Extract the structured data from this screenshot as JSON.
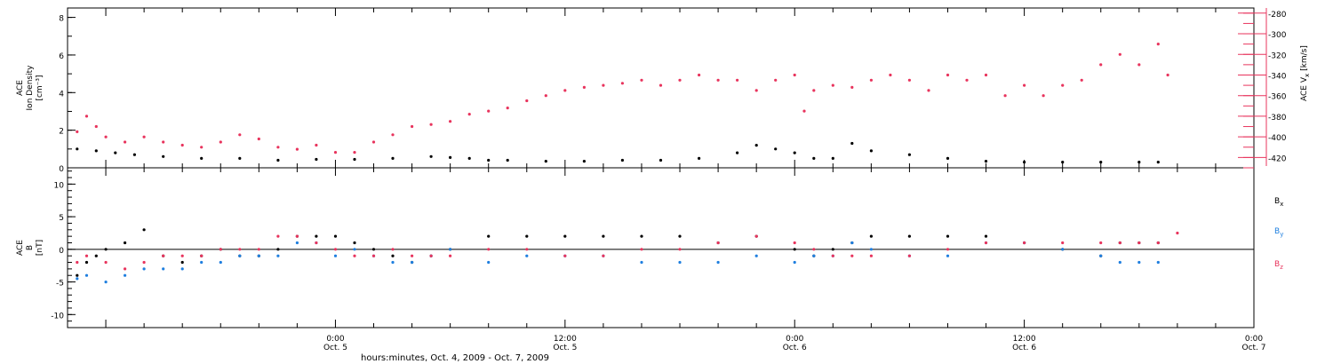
{
  "chart_data": [
    {
      "type": "scatter",
      "panel": "top",
      "ylabel_lines": [
        "ACE",
        "Ion Density",
        "[cm⁻³]"
      ],
      "ylim": [
        0,
        8.5
      ],
      "yticks": [
        0,
        2,
        4,
        6,
        8
      ],
      "y2label": "ACE V",
      "y2label_sub": "x",
      "y2label_unit": "[km/s]",
      "y2lim": [
        -430,
        -275
      ],
      "y2ticks": [
        -420,
        -400,
        -380,
        -360,
        -340,
        -320,
        -300,
        -280
      ],
      "xlim_hours": [
        -14,
        48
      ],
      "series": [
        {
          "name": "Ion Density",
          "color": "#000000",
          "axis": "left",
          "x": [
            -13.5,
            -12.5,
            -11.5,
            -10.5,
            -9,
            -7,
            -5,
            -3,
            -1,
            1,
            3,
            5,
            6,
            7,
            8,
            9,
            11,
            13,
            15,
            17,
            19,
            21,
            22,
            23,
            24,
            25,
            26,
            27,
            28,
            30,
            32,
            34,
            36,
            38,
            40,
            42,
            43
          ],
          "y": [
            1.0,
            0.9,
            0.8,
            0.7,
            0.6,
            0.5,
            0.5,
            0.4,
            0.45,
            0.45,
            0.5,
            0.6,
            0.55,
            0.5,
            0.4,
            0.4,
            0.35,
            0.35,
            0.4,
            0.4,
            0.5,
            0.8,
            1.2,
            1.0,
            0.8,
            0.5,
            0.5,
            1.3,
            0.9,
            0.7,
            0.5,
            0.35,
            0.3,
            0.3,
            0.3,
            0.3,
            0.3
          ]
        },
        {
          "name": "Vx",
          "color": "#e8345d",
          "axis": "right",
          "x": [
            -13.5,
            -13,
            -12.5,
            -12,
            -11,
            -10,
            -9,
            -8,
            -7,
            -6,
            -5,
            -4,
            -3,
            -2,
            -1,
            0,
            1,
            2,
            3,
            4,
            5,
            6,
            7,
            8,
            9,
            10,
            11,
            12,
            13,
            14,
            15,
            16,
            17,
            18,
            19,
            20,
            21,
            22,
            23,
            24,
            24.5,
            25,
            26,
            27,
            28,
            29,
            30,
            31,
            32,
            33,
            34,
            35,
            36,
            37,
            38,
            39,
            40,
            41,
            42,
            43,
            43.5
          ],
          "y": [
            -395,
            -380,
            -390,
            -400,
            -405,
            -400,
            -405,
            -408,
            -410,
            -405,
            -398,
            -402,
            -410,
            -412,
            -408,
            -415,
            -415,
            -405,
            -398,
            -390,
            -388,
            -385,
            -378,
            -375,
            -372,
            -365,
            -360,
            -355,
            -352,
            -350,
            -348,
            -345,
            -350,
            -345,
            -340,
            -345,
            -345,
            -355,
            -345,
            -340,
            -375,
            -355,
            -350,
            -352,
            -345,
            -340,
            -345,
            -355,
            -340,
            -345,
            -340,
            -360,
            -350,
            -360,
            -350,
            -345,
            -330,
            -320,
            -330,
            -310,
            -340
          ]
        }
      ]
    },
    {
      "type": "scatter",
      "panel": "bottom",
      "ylabel_lines": [
        "ACE",
        "B",
        "[nT]"
      ],
      "ylim": [
        -12,
        12.5
      ],
      "yticks": [
        -10,
        -5,
        0,
        5,
        10
      ],
      "zero_line": true,
      "xlim_hours": [
        -14,
        48
      ],
      "series": [
        {
          "name": "B",
          "sub": "x",
          "color": "#000000",
          "x": [
            -13.5,
            -13,
            -12.5,
            -12,
            -11,
            -10,
            -9,
            -8,
            -7,
            -6,
            -5,
            -4,
            -3,
            -2,
            -1,
            0,
            1,
            2,
            3,
            4,
            5,
            6,
            8,
            10,
            12,
            14,
            16,
            18,
            20,
            22,
            24,
            25,
            26,
            27,
            28,
            30,
            32,
            34,
            36,
            38,
            40,
            41,
            42,
            43
          ],
          "y": [
            -4,
            -2,
            -1,
            0,
            1,
            3,
            -1,
            -2,
            -1,
            0,
            -1,
            -1,
            0,
            2,
            2,
            2,
            1,
            0,
            -1,
            -2,
            -1,
            0,
            2,
            2,
            2,
            2,
            2,
            2,
            1,
            2,
            0,
            -1,
            0,
            1,
            2,
            2,
            2,
            2,
            1,
            0,
            -1,
            1,
            1,
            1
          ]
        },
        {
          "name": "B",
          "sub": "y",
          "color": "#1f7fdf",
          "x": [
            -13.5,
            -13,
            -12,
            -11,
            -10,
            -9,
            -8,
            -7,
            -6,
            -5,
            -4,
            -3,
            -2,
            -1,
            0,
            1,
            2,
            3,
            4,
            5,
            6,
            8,
            10,
            12,
            14,
            16,
            18,
            20,
            22,
            24,
            25,
            26,
            27,
            28,
            30,
            32,
            34,
            36,
            38,
            40,
            41,
            42,
            43
          ],
          "y": [
            -4.5,
            -4,
            -5,
            -4,
            -3,
            -3,
            -3,
            -2,
            -2,
            -1,
            -1,
            -1,
            1,
            1,
            -1,
            0,
            -1,
            -2,
            -2,
            -1,
            0,
            -2,
            -1,
            -1,
            -1,
            -2,
            -2,
            -2,
            -1,
            -2,
            -1,
            -1,
            1,
            0,
            -1,
            -1,
            1,
            1,
            0,
            -1,
            -2,
            -2,
            -2
          ]
        },
        {
          "name": "B",
          "sub": "z",
          "color": "#e8345d",
          "x": [
            -13.5,
            -13,
            -12,
            -11,
            -10,
            -9,
            -8,
            -7,
            -6,
            -5,
            -4,
            -3,
            -2,
            -1,
            0,
            1,
            2,
            3,
            4,
            5,
            6,
            8,
            10,
            12,
            14,
            16,
            18,
            20,
            22,
            24,
            25,
            26,
            27,
            28,
            30,
            32,
            34,
            36,
            38,
            40,
            41,
            42,
            43,
            44
          ],
          "y": [
            -2,
            -1,
            -2,
            -3,
            -2,
            -1,
            -1,
            -1,
            0,
            0,
            0,
            2,
            2,
            1,
            0,
            -1,
            -1,
            0,
            -1,
            -1,
            -1,
            0,
            0,
            -1,
            -1,
            0,
            0,
            1,
            2,
            1,
            0,
            -1,
            -1,
            -1,
            -1,
            0,
            1,
            1,
            1,
            1,
            1,
            1,
            1,
            2.5
          ]
        }
      ]
    }
  ],
  "x_axis": {
    "ticks": [
      {
        "hour": 0,
        "line1": "0:00",
        "line2": "Oct. 5"
      },
      {
        "hour": 12,
        "line1": "12:00",
        "line2": "Oct. 5"
      },
      {
        "hour": 24,
        "line1": "0:00",
        "line2": "Oct. 6"
      },
      {
        "hour": 36,
        "line1": "12:00",
        "line2": "Oct. 6"
      },
      {
        "hour": 48,
        "line1": "0:00",
        "line2": "Oct. 7"
      }
    ],
    "label": "hours:minutes, Oct.  4, 2009 - Oct.  7, 2009"
  }
}
